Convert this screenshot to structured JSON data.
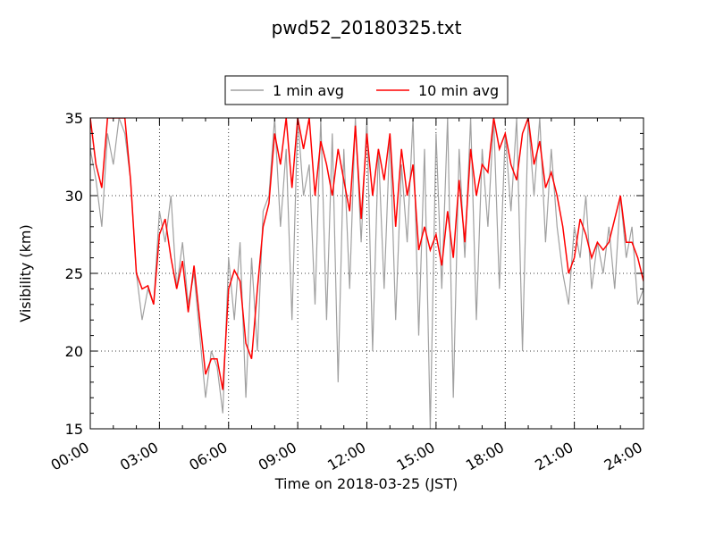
{
  "chart_data": {
    "type": "line",
    "title": "pwd52_20180325.txt",
    "xlabel": "Time on 2018-03-25 (JST)",
    "ylabel": "Visibility (km)",
    "xlim": [
      0,
      24
    ],
    "ylim": [
      15,
      35
    ],
    "x_tick_values": [
      0,
      3,
      6,
      9,
      12,
      15,
      18,
      21,
      24
    ],
    "x_tick_labels": [
      "00:00",
      "03:00",
      "06:00",
      "09:00",
      "12:00",
      "15:00",
      "18:00",
      "21:00",
      "24:00"
    ],
    "y_tick_values": [
      15,
      20,
      25,
      30,
      35
    ],
    "y_tick_labels": [
      "15",
      "20",
      "25",
      "30",
      "35"
    ],
    "grid": true,
    "legend_position": "top-center",
    "legend": [
      "1 min avg",
      "10 min avg"
    ],
    "series": [
      {
        "name": "1 min avg",
        "color": "#a0a0a0",
        "x": [
          0.0,
          0.25,
          0.5,
          0.75,
          1.0,
          1.25,
          1.5,
          1.75,
          2.0,
          2.25,
          2.5,
          2.75,
          3.0,
          3.25,
          3.5,
          3.75,
          4.0,
          4.25,
          4.5,
          4.75,
          5.0,
          5.25,
          5.5,
          5.75,
          6.0,
          6.25,
          6.5,
          6.75,
          7.0,
          7.25,
          7.5,
          7.75,
          8.0,
          8.25,
          8.5,
          8.75,
          9.0,
          9.25,
          9.5,
          9.75,
          10.0,
          10.25,
          10.5,
          10.75,
          11.0,
          11.25,
          11.5,
          11.75,
          12.0,
          12.25,
          12.5,
          12.75,
          13.0,
          13.25,
          13.5,
          13.75,
          14.0,
          14.25,
          14.5,
          14.75,
          15.0,
          15.25,
          15.5,
          15.75,
          16.0,
          16.25,
          16.5,
          16.75,
          17.0,
          17.25,
          17.5,
          17.75,
          18.0,
          18.25,
          18.5,
          18.75,
          19.0,
          19.25,
          19.5,
          19.75,
          20.0,
          20.25,
          20.5,
          20.75,
          21.0,
          21.25,
          21.5,
          21.75,
          22.0,
          22.25,
          22.5,
          22.75,
          23.0,
          23.25,
          23.5,
          23.75,
          24.0
        ],
        "y": [
          33,
          31,
          28,
          34,
          32,
          35,
          34,
          31,
          25,
          22,
          24,
          23,
          29,
          27,
          30,
          24,
          27,
          23,
          25,
          21,
          17,
          20,
          19,
          16,
          26,
          22,
          27,
          17,
          26,
          20,
          29,
          30,
          35,
          28,
          33,
          22,
          35,
          30,
          32,
          23,
          35,
          22,
          34,
          18,
          33,
          24,
          35,
          27,
          35,
          20,
          33,
          24,
          34,
          22,
          32,
          27,
          35,
          21,
          33,
          15,
          34,
          24,
          35,
          17,
          33,
          26,
          35,
          22,
          33,
          28,
          35,
          24,
          34,
          29,
          35,
          20,
          35,
          30,
          35,
          27,
          33,
          28,
          25,
          23,
          28,
          26,
          30,
          24,
          27,
          25,
          28,
          24,
          30,
          26,
          28,
          23,
          24
        ]
      },
      {
        "name": "10 min avg",
        "color": "#ff0000",
        "x": [
          0.0,
          0.25,
          0.5,
          0.75,
          1.0,
          1.25,
          1.5,
          1.75,
          2.0,
          2.25,
          2.5,
          2.75,
          3.0,
          3.25,
          3.5,
          3.75,
          4.0,
          4.25,
          4.5,
          4.75,
          5.0,
          5.25,
          5.5,
          5.75,
          6.0,
          6.25,
          6.5,
          6.75,
          7.0,
          7.25,
          7.5,
          7.75,
          8.0,
          8.25,
          8.5,
          8.75,
          9.0,
          9.25,
          9.5,
          9.75,
          10.0,
          10.25,
          10.5,
          10.75,
          11.0,
          11.25,
          11.5,
          11.75,
          12.0,
          12.25,
          12.5,
          12.75,
          13.0,
          13.25,
          13.5,
          13.75,
          14.0,
          14.25,
          14.5,
          14.75,
          15.0,
          15.25,
          15.5,
          15.75,
          16.0,
          16.25,
          16.5,
          16.75,
          17.0,
          17.25,
          17.5,
          17.75,
          18.0,
          18.25,
          18.5,
          18.75,
          19.0,
          19.25,
          19.5,
          19.75,
          20.0,
          20.25,
          20.5,
          20.75,
          21.0,
          21.25,
          21.5,
          21.75,
          22.0,
          22.25,
          22.5,
          22.75,
          23.0,
          23.25,
          23.5,
          23.75,
          24.0
        ],
        "y": [
          35,
          32,
          30.5,
          35,
          35,
          35,
          35,
          31,
          25,
          24,
          24.2,
          23,
          27.5,
          28.5,
          26,
          24,
          25.8,
          22.5,
          25.5,
          22,
          18.5,
          19.5,
          19.5,
          17.5,
          24,
          25.2,
          24.5,
          20.5,
          19.5,
          24,
          28,
          29.5,
          34,
          32,
          35,
          30.5,
          35,
          33,
          35,
          30,
          33.5,
          32,
          30,
          33,
          31,
          29,
          34.5,
          28.5,
          34,
          30,
          33,
          31,
          34,
          28,
          33,
          30,
          32,
          26.5,
          28,
          26.5,
          27.5,
          25.5,
          29,
          26,
          31,
          27,
          33,
          30,
          32,
          31.5,
          35,
          33,
          34,
          32,
          31,
          34,
          35,
          32,
          33.5,
          30.5,
          31.5,
          30,
          28,
          25,
          26,
          28.5,
          27.5,
          26,
          27,
          26.5,
          27,
          28.5,
          30,
          27,
          27,
          26,
          24.5
        ]
      }
    ]
  }
}
